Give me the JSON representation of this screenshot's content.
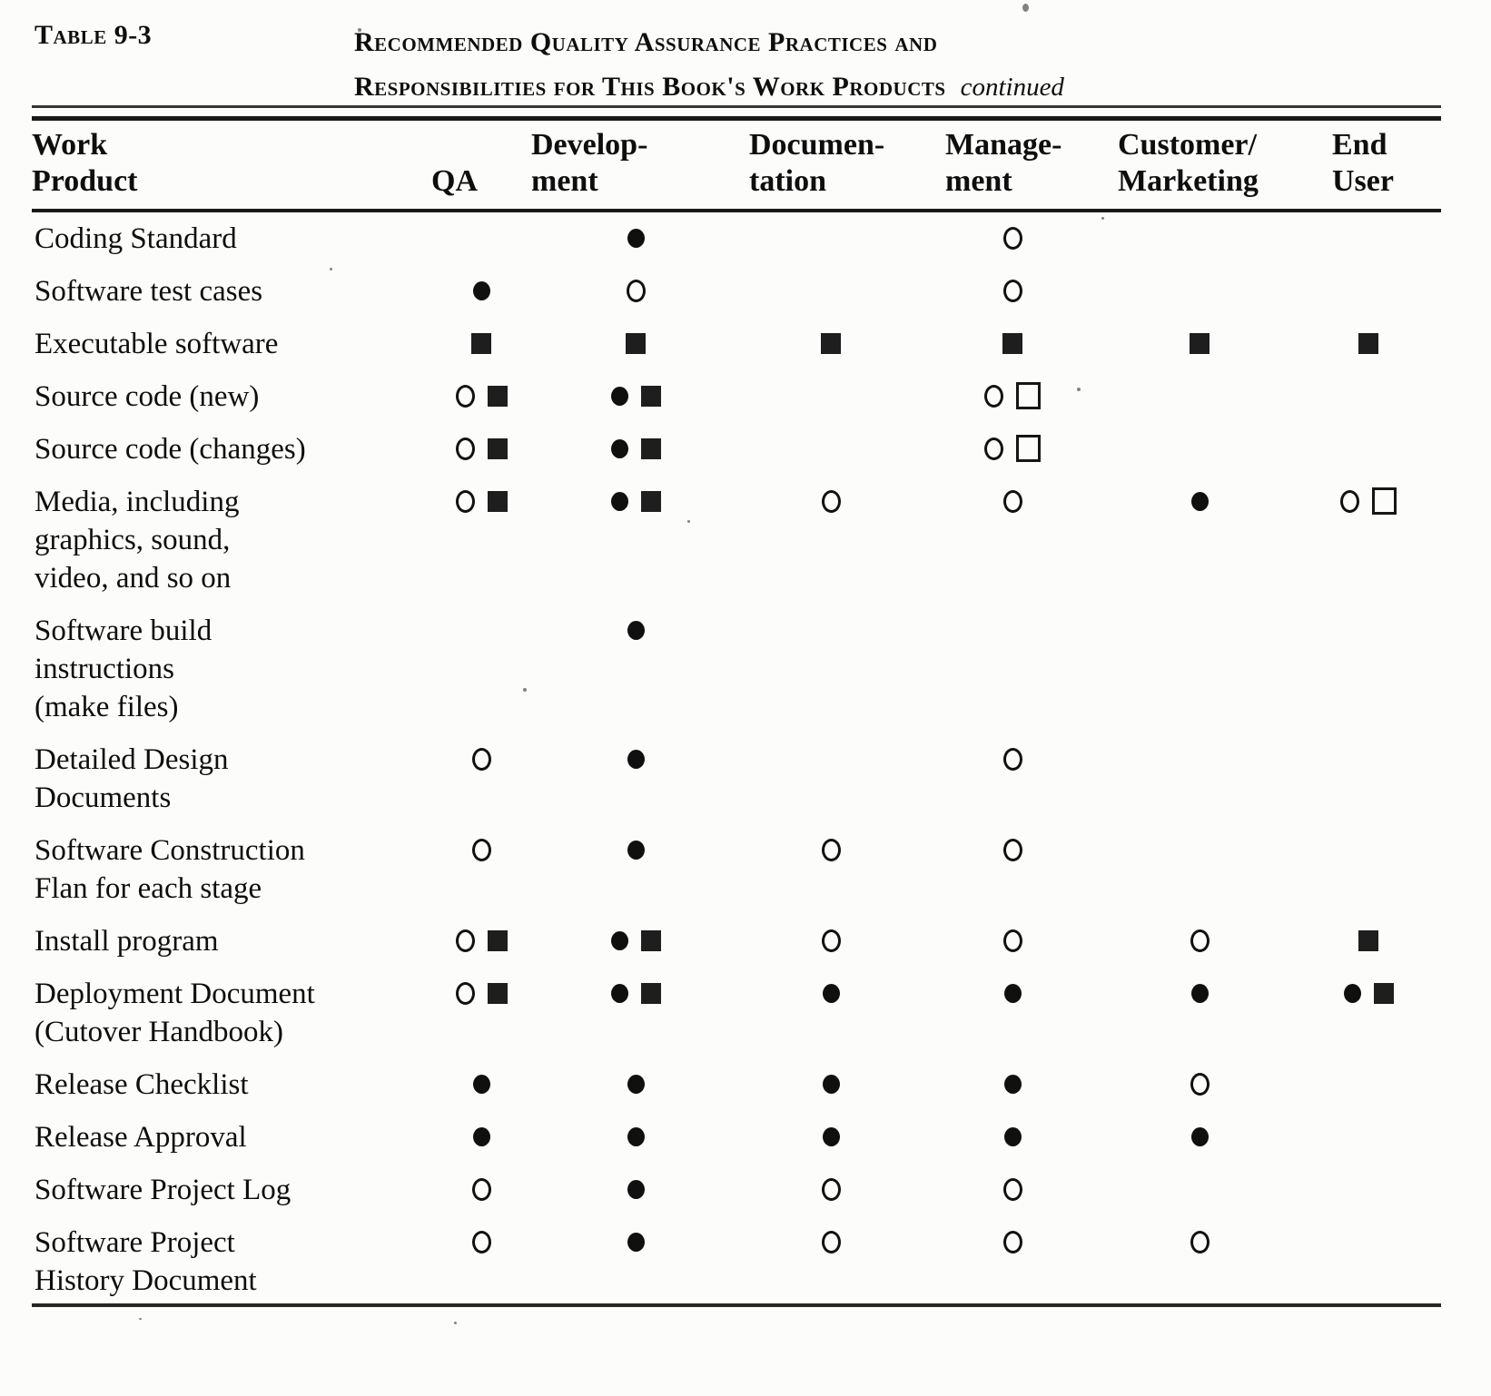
{
  "header": {
    "table_label": "Table 9-3",
    "title_lines": [
      "Recommended Quality Assurance Practices and",
      "Responsibilities for This Book's Work Products"
    ],
    "continued": "continued"
  },
  "table": {
    "columns": [
      {
        "id": "work-product",
        "lines": [
          "Work",
          "Product"
        ]
      },
      {
        "id": "qa",
        "lines": [
          "",
          "QA"
        ]
      },
      {
        "id": "development",
        "lines": [
          "Develop-",
          "ment"
        ]
      },
      {
        "id": "documentation",
        "lines": [
          "Documen-",
          "tation"
        ]
      },
      {
        "id": "management",
        "lines": [
          "Manage-",
          "ment"
        ]
      },
      {
        "id": "customer-marketing",
        "lines": [
          "Customer/",
          "Marketing"
        ]
      },
      {
        "id": "end-user",
        "lines": [
          "End",
          "User"
        ]
      }
    ],
    "symbol_legend": {
      "fc": "filled-circle",
      "oc": "open-circle",
      "fs": "filled-square",
      "os": "open-square"
    },
    "rows": [
      {
        "label": [
          "Coding Standard"
        ],
        "cells": [
          [],
          [
            "fc"
          ],
          [],
          [
            "oc"
          ],
          [],
          []
        ]
      },
      {
        "label": [
          "Software test cases"
        ],
        "cells": [
          [
            "fc"
          ],
          [
            "oc"
          ],
          [],
          [
            "oc"
          ],
          [],
          []
        ]
      },
      {
        "label": [
          "Executable software"
        ],
        "cells": [
          [
            "fs"
          ],
          [
            "fs"
          ],
          [
            "fs"
          ],
          [
            "fs"
          ],
          [
            "fs"
          ],
          [
            "fs"
          ]
        ]
      },
      {
        "label": [
          "Source code (new)"
        ],
        "cells": [
          [
            "oc",
            "fs"
          ],
          [
            "fc",
            "fs"
          ],
          [],
          [
            "oc",
            "os"
          ],
          [],
          []
        ]
      },
      {
        "label": [
          "Source code (changes)"
        ],
        "cells": [
          [
            "oc",
            "fs"
          ],
          [
            "fc",
            "fs"
          ],
          [],
          [
            "oc",
            "os"
          ],
          [],
          []
        ]
      },
      {
        "label": [
          "Media, including",
          "graphics, sound,",
          "video, and so on"
        ],
        "cells": [
          [
            "oc",
            "fs"
          ],
          [
            "fc",
            "fs"
          ],
          [
            "oc"
          ],
          [
            "oc"
          ],
          [
            "fc"
          ],
          [
            "oc",
            "os"
          ]
        ]
      },
      {
        "label": [
          "Software build",
          "instructions",
          "(make files)"
        ],
        "cells": [
          [],
          [
            "fc"
          ],
          [],
          [],
          [],
          []
        ]
      },
      {
        "label": [
          "Detailed Design",
          "Documents"
        ],
        "cells": [
          [
            "oc"
          ],
          [
            "fc"
          ],
          [],
          [
            "oc"
          ],
          [],
          []
        ]
      },
      {
        "label": [
          "Software Construction",
          "Flan for each stage"
        ],
        "cells": [
          [
            "oc"
          ],
          [
            "fc"
          ],
          [
            "oc"
          ],
          [
            "oc"
          ],
          [],
          []
        ]
      },
      {
        "label": [
          "Install program"
        ],
        "cells": [
          [
            "oc",
            "fs"
          ],
          [
            "fc",
            "fs"
          ],
          [
            "oc"
          ],
          [
            "oc"
          ],
          [
            "oc"
          ],
          [
            "fs"
          ]
        ]
      },
      {
        "label": [
          "Deployment Document",
          "(Cutover Handbook)"
        ],
        "cells": [
          [
            "oc",
            "fs"
          ],
          [
            "fc",
            "fs"
          ],
          [
            "fc"
          ],
          [
            "fc"
          ],
          [
            "fc"
          ],
          [
            "fc",
            "fs"
          ]
        ]
      },
      {
        "label": [
          "Release Checklist"
        ],
        "cells": [
          [
            "fc"
          ],
          [
            "fc"
          ],
          [
            "fc"
          ],
          [
            "fc"
          ],
          [
            "oc"
          ],
          []
        ]
      },
      {
        "label": [
          "Release Approval"
        ],
        "cells": [
          [
            "fc"
          ],
          [
            "fc"
          ],
          [
            "fc"
          ],
          [
            "fc"
          ],
          [
            "fc"
          ],
          []
        ]
      },
      {
        "label": [
          "Software Project Log"
        ],
        "cells": [
          [
            "oc"
          ],
          [
            "fc"
          ],
          [
            "oc"
          ],
          [
            "oc"
          ],
          [],
          []
        ]
      },
      {
        "label": [
          "Software Project",
          "History Document"
        ],
        "cells": [
          [
            "oc"
          ],
          [
            "fc"
          ],
          [
            "oc"
          ],
          [
            "oc"
          ],
          [
            "oc"
          ],
          []
        ]
      }
    ]
  }
}
